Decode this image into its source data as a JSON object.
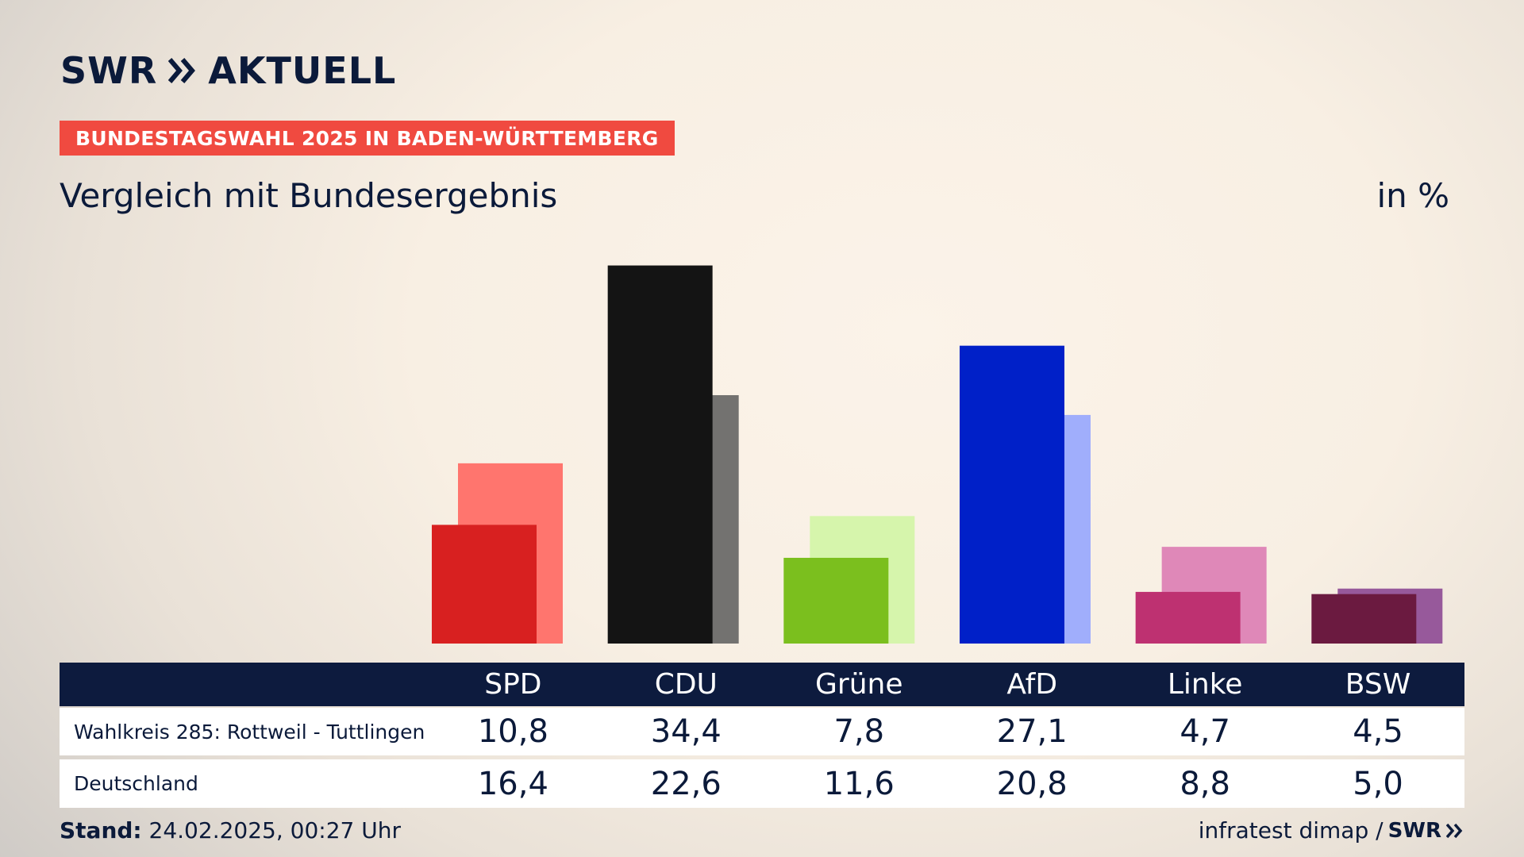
{
  "header": {
    "logo_text": "SWR",
    "logo_suffix": "AKTUELL",
    "badge": "BUNDESTAGSWAHL 2025 IN BADEN-WÜRTTEMBERG",
    "subtitle": "Vergleich mit Bundesergebnis",
    "unit": "in %"
  },
  "footer": {
    "stand_label": "Stand:",
    "stand_value": "24.02.2025, 00:27 Uhr",
    "source": "infratest dimap /",
    "brand": "SWR"
  },
  "chart_data": {
    "type": "bar",
    "title": "Vergleich mit Bundesergebnis",
    "unit": "in %",
    "categories": [
      "SPD",
      "CDU",
      "Grüne",
      "AfD",
      "Linke",
      "BSW"
    ],
    "series": [
      {
        "name": "Wahlkreis 285: Rottweil - Tuttlingen",
        "values": [
          10.8,
          34.4,
          7.8,
          27.1,
          4.7,
          4.5
        ]
      },
      {
        "name": "Deutschland",
        "values": [
          16.4,
          22.6,
          11.6,
          20.8,
          8.8,
          5.0
        ]
      }
    ],
    "value_labels": [
      [
        "10,8",
        "34,4",
        "7,8",
        "27,1",
        "4,7",
        "4,5"
      ],
      [
        "16,4",
        "22,6",
        "11,6",
        "20,8",
        "8,8",
        "5,0"
      ]
    ],
    "colors_primary": [
      "#d82020",
      "#141414",
      "#7bbf1e",
      "#0020c8",
      "#be3171",
      "#6b1a40"
    ],
    "colors_secondary": [
      "#ff756e",
      "#737270",
      "#d6f5ac",
      "#a0aefc",
      "#df88b8",
      "#97599b"
    ],
    "ylim": [
      0,
      35
    ],
    "grid": false,
    "legend": "table-below"
  }
}
